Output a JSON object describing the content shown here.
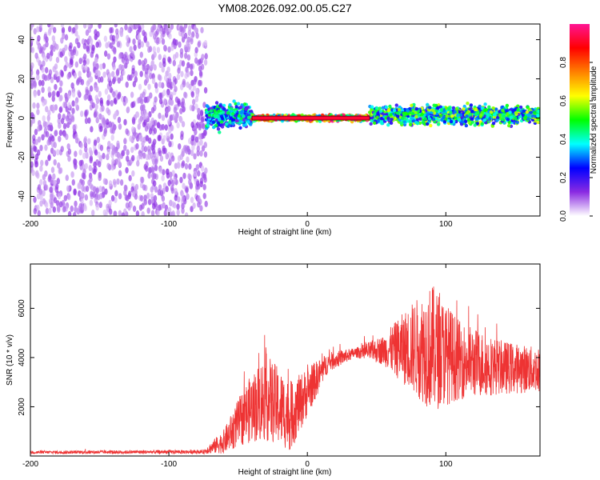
{
  "title": "YM08.2026.092.00.05.C27",
  "chart_data": [
    {
      "type": "heatmap",
      "title": "YM08.2026.092.00.05.C27",
      "xlabel": "Height of straight line (km)",
      "ylabel": "Frequency (Hz)",
      "xlim": [
        -200,
        168
      ],
      "ylim": [
        -50,
        48
      ],
      "xticks": [
        -200,
        -100,
        0,
        100
      ],
      "yticks": [
        -40,
        -20,
        0,
        20,
        40
      ],
      "colorbar": {
        "label": "Normalized spectral amplitude",
        "range": [
          0,
          1
        ],
        "ticks": [
          0.0,
          0.2,
          0.4,
          0.6,
          0.8
        ],
        "colors": [
          "#ffffff",
          "#8a2be2",
          "#0000ff",
          "#00ffff",
          "#00ff00",
          "#ffff00",
          "#ff8000",
          "#ff0000",
          "#ff1493"
        ]
      },
      "regions": [
        {
          "x": [
            -200,
            -73
          ],
          "freq_spread": [
            -50,
            48
          ],
          "amplitude": 0.1
        },
        {
          "x": [
            -73,
            -40
          ],
          "freq_spread": [
            -8,
            10
          ],
          "amplitude": 0.4
        },
        {
          "x": [
            -40,
            45
          ],
          "freq_spread": [
            -2,
            2
          ],
          "amplitude": 0.85
        },
        {
          "x": [
            45,
            168
          ],
          "freq_spread": [
            -5,
            8
          ],
          "amplitude": 0.5
        }
      ]
    },
    {
      "type": "line",
      "xlabel": "Height of straight line (km)",
      "ylabel": "SNR (10 * v/v)",
      "xlim": [
        -200,
        168
      ],
      "ylim": [
        0,
        7800
      ],
      "xticks": [
        -200,
        -100,
        0,
        100
      ],
      "yticks": [
        2000,
        4000,
        6000
      ],
      "color": "#ee3333",
      "envelope": [
        {
          "x": -200,
          "base": 150,
          "amp": 60
        },
        {
          "x": -75,
          "base": 170,
          "amp": 80
        },
        {
          "x": -60,
          "base": 600,
          "amp": 500
        },
        {
          "x": -45,
          "base": 1700,
          "amp": 1200
        },
        {
          "x": -30,
          "base": 2400,
          "amp": 1800
        },
        {
          "x": -12,
          "base": 1600,
          "amp": 1400
        },
        {
          "x": 0,
          "base": 2600,
          "amp": 1000
        },
        {
          "x": 15,
          "base": 3800,
          "amp": 400
        },
        {
          "x": 35,
          "base": 4200,
          "amp": 200
        },
        {
          "x": 55,
          "base": 4300,
          "amp": 600
        },
        {
          "x": 75,
          "base": 4400,
          "amp": 1800
        },
        {
          "x": 90,
          "base": 4400,
          "amp": 2600
        },
        {
          "x": 110,
          "base": 3900,
          "amp": 1600
        },
        {
          "x": 140,
          "base": 3600,
          "amp": 1100
        },
        {
          "x": 168,
          "base": 3500,
          "amp": 900
        }
      ]
    }
  ]
}
